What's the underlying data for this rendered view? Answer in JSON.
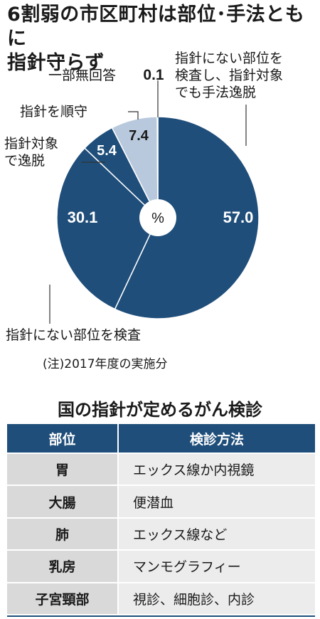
{
  "title_line1": "6割弱の市区町村は部位･手法ともに",
  "title_line2": "指針守らず",
  "chart_data": {
    "type": "pie",
    "title": "6割弱の市区町村は部位･手法ともに指針守らず",
    "center_label": "%",
    "slices": [
      {
        "label": "指針にない部位を検査し、指針対象でも手法逸脱",
        "value": 57.0,
        "color": "#1f4e7a"
      },
      {
        "label": "指針にない部位を検査",
        "value": 30.1,
        "color": "#1f4e7a"
      },
      {
        "label": "指針対象で逸脱",
        "value": 5.4,
        "color": "#1f4e7a"
      },
      {
        "label": "指針を順守",
        "value": 7.4,
        "color": "#b8c9dd"
      },
      {
        "label": "一部無回答",
        "value": 0.1,
        "color": "#ffffff"
      }
    ],
    "value_labels": [
      "57.0",
      "30.1",
      "5.4",
      "7.4",
      "0.1"
    ],
    "note": "(注)2017年度の実施分"
  },
  "labels": {
    "top_right_1": "指針にない部位を",
    "top_right_2": "検査し、指針対象",
    "top_right_3": "でも手法逸脱",
    "no_answer": "一部無回答",
    "comply": "指針を順守",
    "deviate_1": "指針対象",
    "deviate_2": "で逸脱",
    "bottom": "指針にない部位を検査"
  },
  "table": {
    "title": "国の指針が定めるがん検診",
    "headers": [
      "部位",
      "検診方法"
    ],
    "rows": [
      [
        "胃",
        "エックス線か内視鏡"
      ],
      [
        "大腸",
        "便潜血"
      ],
      [
        "肺",
        "エックス線など"
      ],
      [
        "乳房",
        "マンモグラフィー"
      ],
      [
        "子宮頸部",
        "視診、細胞診、内診"
      ]
    ]
  },
  "colors": {
    "dark_blue": "#1f4e7a",
    "light_blue": "#b8c9dd"
  }
}
